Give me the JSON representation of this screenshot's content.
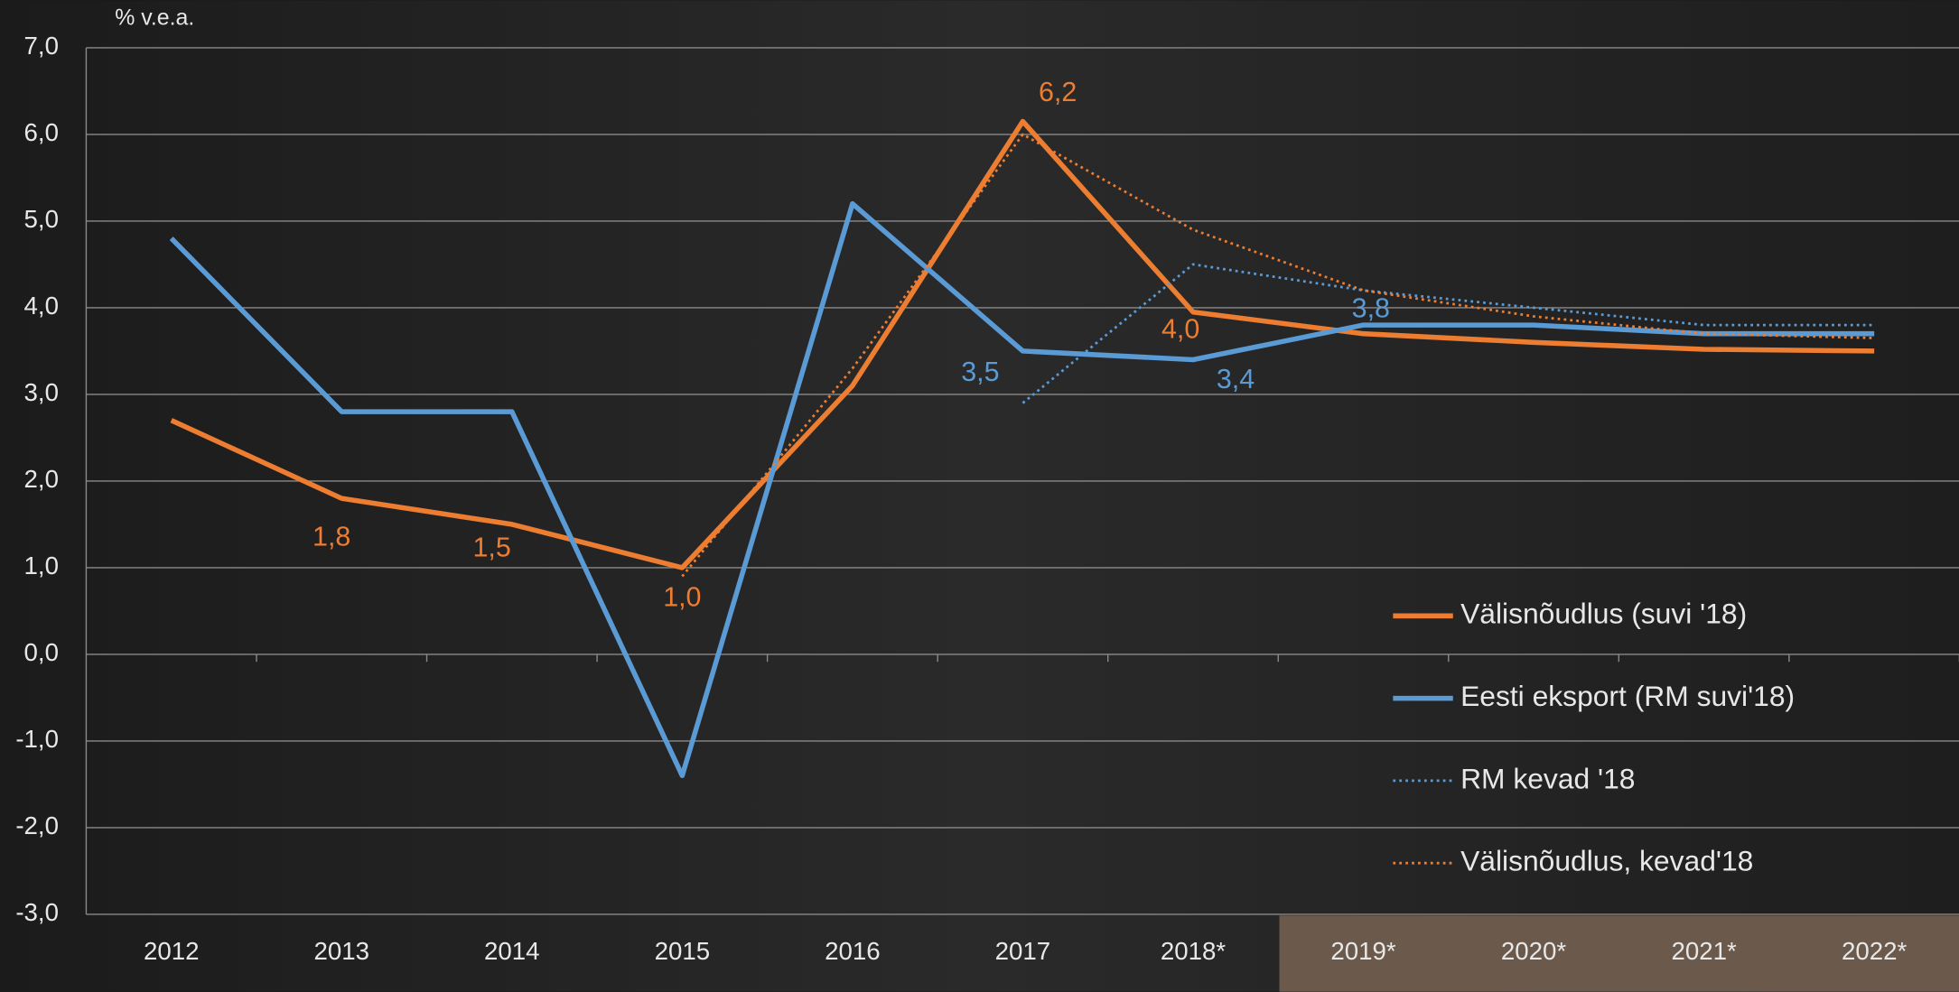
{
  "chart_data": {
    "type": "line",
    "unit_label": "% v.e.a.",
    "categories": [
      "2012",
      "2013",
      "2014",
      "2015",
      "2016",
      "2017",
      "2018*",
      "2019*",
      "2020*",
      "2021*",
      "2022*"
    ],
    "ylim": [
      -3,
      7
    ],
    "yticks": [
      {
        "value": 7,
        "label": "7,0"
      },
      {
        "value": 6,
        "label": "6,0"
      },
      {
        "value": 5,
        "label": "5,0"
      },
      {
        "value": 4,
        "label": "4,0"
      },
      {
        "value": 3,
        "label": "3,0"
      },
      {
        "value": 2,
        "label": "2,0"
      },
      {
        "value": 1,
        "label": "1,0"
      },
      {
        "value": 0,
        "label": "0,0"
      },
      {
        "value": -1,
        "label": "-1,0"
      },
      {
        "value": -2,
        "label": "-2,0"
      },
      {
        "value": -3,
        "label": "-3,0"
      }
    ],
    "grid": true,
    "legend": "right",
    "series": [
      {
        "name": "Välisnõudlus (suvi '18)",
        "color": "#ed7d31",
        "style": "solid",
        "values": [
          2.7,
          1.8,
          1.5,
          1.0,
          3.1,
          6.15,
          3.95,
          3.7,
          3.6,
          3.52,
          3.5
        ],
        "value_labels": [
          null,
          "1,8",
          "1,5",
          "1,0",
          null,
          "6,2",
          "4,0",
          null,
          null,
          null,
          null
        ]
      },
      {
        "name": "Eesti eksport (RM suvi'18)",
        "color": "#5b9bd5",
        "style": "solid",
        "values": [
          4.8,
          2.8,
          2.8,
          -1.4,
          5.2,
          3.5,
          3.4,
          3.8,
          3.8,
          3.7,
          3.7
        ],
        "value_labels": [
          null,
          null,
          null,
          null,
          null,
          "3,5",
          "3,4",
          "3,8",
          null,
          null,
          null
        ]
      },
      {
        "name": "RM kevad '18",
        "color": "#5b9bd5",
        "style": "dotted",
        "values": [
          null,
          null,
          null,
          null,
          null,
          2.9,
          4.5,
          4.2,
          4.0,
          3.8,
          3.8
        ]
      },
      {
        "name": "Välisnõudlus, kevad'18",
        "color": "#ed7d31",
        "style": "dotted",
        "values": [
          null,
          null,
          null,
          0.9,
          3.3,
          6.0,
          4.9,
          4.2,
          3.9,
          3.7,
          3.65
        ]
      }
    ]
  }
}
